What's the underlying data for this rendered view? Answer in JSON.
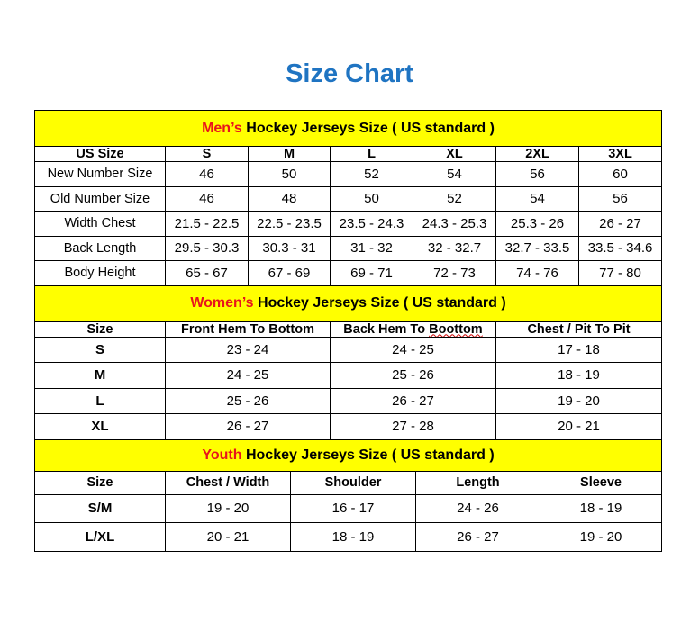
{
  "title": "Size Chart",
  "colors": {
    "title": "#1f74c2",
    "section_bg": "#ffff00",
    "highlight": "#e8141c"
  },
  "men": {
    "title_highlight": "Men’s",
    "title_rest": " Hockey Jerseys Size ( US standard )",
    "headers": [
      "US Size",
      "S",
      "M",
      "L",
      "XL",
      "2XL",
      "3XL"
    ],
    "rows": [
      [
        "New Number Size",
        "46",
        "50",
        "52",
        "54",
        "56",
        "60"
      ],
      [
        "Old Number Size",
        "46",
        "48",
        "50",
        "52",
        "54",
        "56"
      ],
      [
        "Width Chest",
        "21.5 - 22.5",
        "22.5 - 23.5",
        "23.5 - 24.3",
        "24.3 - 25.3",
        "25.3 - 26",
        "26 - 27"
      ],
      [
        "Back Length",
        "29.5 - 30.3",
        "30.3 - 31",
        "31 - 32",
        "32 - 32.7",
        "32.7 - 33.5",
        "33.5 - 34.6"
      ],
      [
        "Body Height",
        "65 - 67",
        "67 - 69",
        "69 - 71",
        "72 - 73",
        "74 - 76",
        "77 - 80"
      ]
    ]
  },
  "women": {
    "title_highlight": "Women’s",
    "title_rest": " Hockey Jerseys Size ( US standard )",
    "headers": [
      "Size",
      "Front Hem To Bottom",
      "Back Hem To Boottom",
      "Chest / Pit To Pit"
    ],
    "rows": [
      [
        "S",
        "23 - 24",
        "24 - 25",
        "17 - 18"
      ],
      [
        "M",
        "24 - 25",
        "25 - 26",
        "18 - 19"
      ],
      [
        "L",
        "25 - 26",
        "26 - 27",
        "19 - 20"
      ],
      [
        "XL",
        "26 - 27",
        "27 - 28",
        "20 - 21"
      ]
    ]
  },
  "youth": {
    "title_highlight": "Youth",
    "title_rest": " Hockey Jerseys Size ( US standard )",
    "headers": [
      "Size",
      "Chest / Width",
      "Shoulder",
      "Length",
      "Sleeve"
    ],
    "rows": [
      [
        "S/M",
        "19 - 20",
        "16 - 17",
        "24 - 26",
        "18 - 19"
      ],
      [
        "L/XL",
        "20 - 21",
        "18 - 19",
        "26 - 27",
        "19 - 20"
      ]
    ]
  }
}
